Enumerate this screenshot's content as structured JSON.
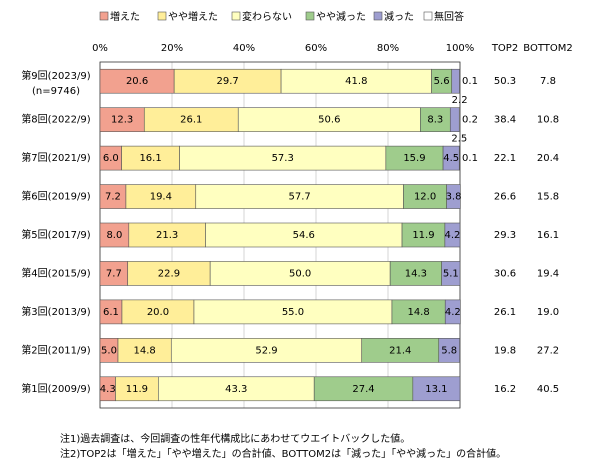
{
  "chart_data": {
    "type": "stacked-bar-horizontal",
    "categories": [
      "第9回(2023/9)",
      "第8回(2022/9)",
      "第7回(2021/9)",
      "第6回(2019/9)",
      "第5回(2017/9)",
      "第4回(2015/9)",
      "第3回(2013/9)",
      "第2回(2011/9)",
      "第1回(2009/9)"
    ],
    "sample_note": "(n=9746)",
    "xlim": [
      0,
      100
    ],
    "xticks": [
      {
        "value": 0,
        "label": "0%"
      },
      {
        "value": 20,
        "label": "20%"
      },
      {
        "value": 40,
        "label": "40%"
      },
      {
        "value": 60,
        "label": "60%"
      },
      {
        "value": 80,
        "label": "80%"
      },
      {
        "value": 100,
        "label": "100%"
      }
    ],
    "grid": true,
    "series": [
      {
        "name": "増えた",
        "color": "#f2a18f",
        "values": [
          20.6,
          12.3,
          6.0,
          7.2,
          8.0,
          7.7,
          6.1,
          5.0,
          4.3
        ],
        "value_labels": [
          "20.6",
          "12.3",
          "6.0",
          "7.2",
          "8.0",
          "7.7",
          "6.1",
          "5.0",
          "4.3"
        ]
      },
      {
        "name": "やや増えた",
        "color": "#ffee99",
        "values": [
          29.7,
          26.1,
          16.1,
          19.4,
          21.3,
          22.9,
          20.0,
          14.8,
          11.9
        ],
        "value_labels": [
          "29.7",
          "26.1",
          "16.1",
          "19.4",
          "21.3",
          "22.9",
          "20.0",
          "14.8",
          "11.9"
        ]
      },
      {
        "name": "変わらない",
        "color": "#ffffc0",
        "values": [
          41.8,
          50.6,
          57.3,
          57.7,
          54.6,
          50.0,
          55.0,
          52.9,
          43.3
        ],
        "value_labels": [
          "41.8",
          "50.6",
          "57.3",
          "57.7",
          "54.6",
          "50.0",
          "55.0",
          "52.9",
          "43.3"
        ]
      },
      {
        "name": "やや減った",
        "color": "#9fcc8c",
        "values": [
          5.6,
          8.3,
          15.9,
          12.0,
          11.9,
          14.3,
          14.8,
          21.4,
          27.4
        ],
        "value_labels": [
          "5.6",
          "8.3",
          "15.9",
          "12.0",
          "11.9",
          "14.3",
          "14.8",
          "21.4",
          "27.4"
        ]
      },
      {
        "name": "減った",
        "color": "#9e9ed0",
        "values": [
          2.2,
          2.5,
          4.5,
          3.8,
          4.2,
          5.1,
          4.2,
          5.8,
          13.1
        ],
        "value_labels": [
          "2.2",
          "2.5",
          "4.5",
          "3.8",
          "4.2",
          "5.1",
          "4.2",
          "5.8",
          "13.1"
        ]
      },
      {
        "name": "無回答",
        "color": "#ffffff",
        "values": [
          0.1,
          0.2,
          0.1,
          null,
          null,
          null,
          null,
          null,
          null
        ],
        "value_labels": [
          "0.1",
          "0.2",
          "0.1",
          null,
          null,
          null,
          null,
          null,
          null
        ]
      }
    ],
    "summary_columns": [
      {
        "name": "TOP2",
        "values": [
          50.3,
          38.4,
          22.1,
          26.6,
          29.3,
          30.6,
          26.1,
          19.8,
          16.2
        ]
      },
      {
        "name": "BOTTOM2",
        "values": [
          7.8,
          10.8,
          20.4,
          15.8,
          16.1,
          19.4,
          19.0,
          27.2,
          40.5
        ],
        "value_labels": [
          "7.8",
          "10.8",
          "20.4",
          "15.8",
          "16.1",
          "19.4",
          "19.0",
          "27.2",
          "40.5"
        ]
      }
    ],
    "notes": [
      "注1)過去調査は、今回調査の性年代構成比にあわせてウエイトバックした値。",
      "注2)TOP2は「増えた」「やや増えた」の合計値、BOTTOM2は「減った」「やや減った」の合計値。"
    ]
  }
}
